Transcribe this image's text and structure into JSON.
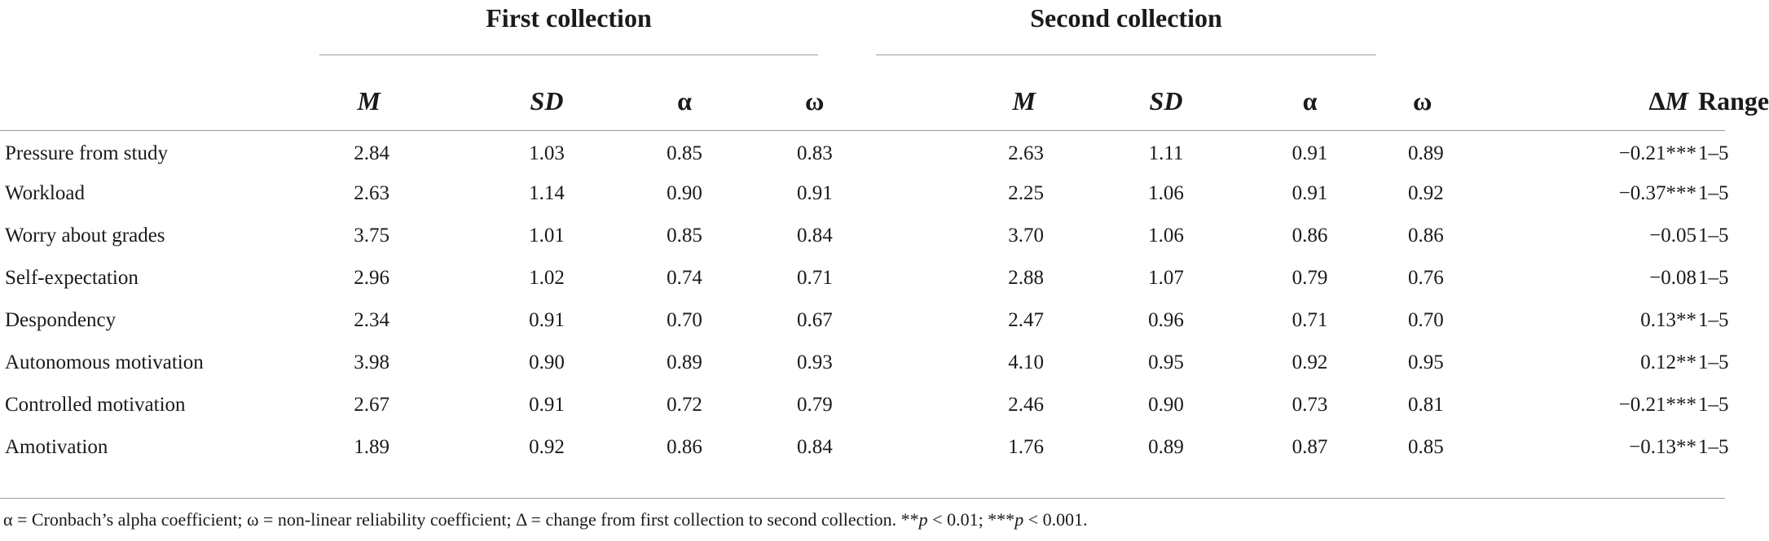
{
  "groups": {
    "first": "First collection",
    "second": "Second collection"
  },
  "headers": {
    "variable": "",
    "m": "M",
    "sd": "SD",
    "alpha": "α",
    "omega": "ω",
    "m2": "M",
    "sd2": "SD",
    "alpha2": "α",
    "omega2": "ω",
    "delta_symbol": "Δ",
    "delta_m": "M",
    "range": "Range"
  },
  "rows": [
    {
      "label": "Pressure from study",
      "m1": "2.84",
      "sd1": "1.03",
      "a1": "0.85",
      "w1": "0.83",
      "m2": "2.63",
      "sd2": "1.11",
      "a2": "0.91",
      "w2": "0.89",
      "dm": "−0.21***",
      "range": "1–5"
    },
    {
      "label": "Workload",
      "m1": "2.63",
      "sd1": "1.14",
      "a1": "0.90",
      "w1": "0.91",
      "m2": "2.25",
      "sd2": "1.06",
      "a2": "0.91",
      "w2": "0.92",
      "dm": "−0.37***",
      "range": "1–5"
    },
    {
      "label": "Worry about grades",
      "m1": "3.75",
      "sd1": "1.01",
      "a1": "0.85",
      "w1": "0.84",
      "m2": "3.70",
      "sd2": "1.06",
      "a2": "0.86",
      "w2": "0.86",
      "dm": "−0.05",
      "range": "1–5"
    },
    {
      "label": "Self-expectation",
      "m1": "2.96",
      "sd1": "1.02",
      "a1": "0.74",
      "w1": "0.71",
      "m2": "2.88",
      "sd2": "1.07",
      "a2": "0.79",
      "w2": "0.76",
      "dm": "−0.08",
      "range": "1–5"
    },
    {
      "label": "Despondency",
      "m1": "2.34",
      "sd1": "0.91",
      "a1": "0.70",
      "w1": "0.67",
      "m2": "2.47",
      "sd2": "0.96",
      "a2": "0.71",
      "w2": "0.70",
      "dm": "0.13**",
      "range": "1–5"
    },
    {
      "label": "Autonomous motivation",
      "m1": "3.98",
      "sd1": "0.90",
      "a1": "0.89",
      "w1": "0.93",
      "m2": "4.10",
      "sd2": "0.95",
      "a2": "0.92",
      "w2": "0.95",
      "dm": "0.12**",
      "range": "1–5"
    },
    {
      "label": "Controlled motivation",
      "m1": "2.67",
      "sd1": "0.91",
      "a1": "0.72",
      "w1": "0.79",
      "m2": "2.46",
      "sd2": "0.90",
      "a2": "0.73",
      "w2": "0.81",
      "dm": "−0.21***",
      "range": "1–5"
    },
    {
      "label": "Amotivation",
      "m1": "1.89",
      "sd1": "0.92",
      "a1": "0.86",
      "w1": "0.84",
      "m2": "1.76",
      "sd2": "0.89",
      "a2": "0.87",
      "w2": "0.85",
      "dm": "−0.13**",
      "range": "1–5"
    }
  ],
  "note": {
    "main": "α = Cronbach’s alpha coefficient; ω = non-linear reliability coefficient; Δ = change from first collection to second collection. **",
    "p1": "p",
    "mid": " < 0.01; ***",
    "p2": "p",
    "end": " < 0.001."
  }
}
